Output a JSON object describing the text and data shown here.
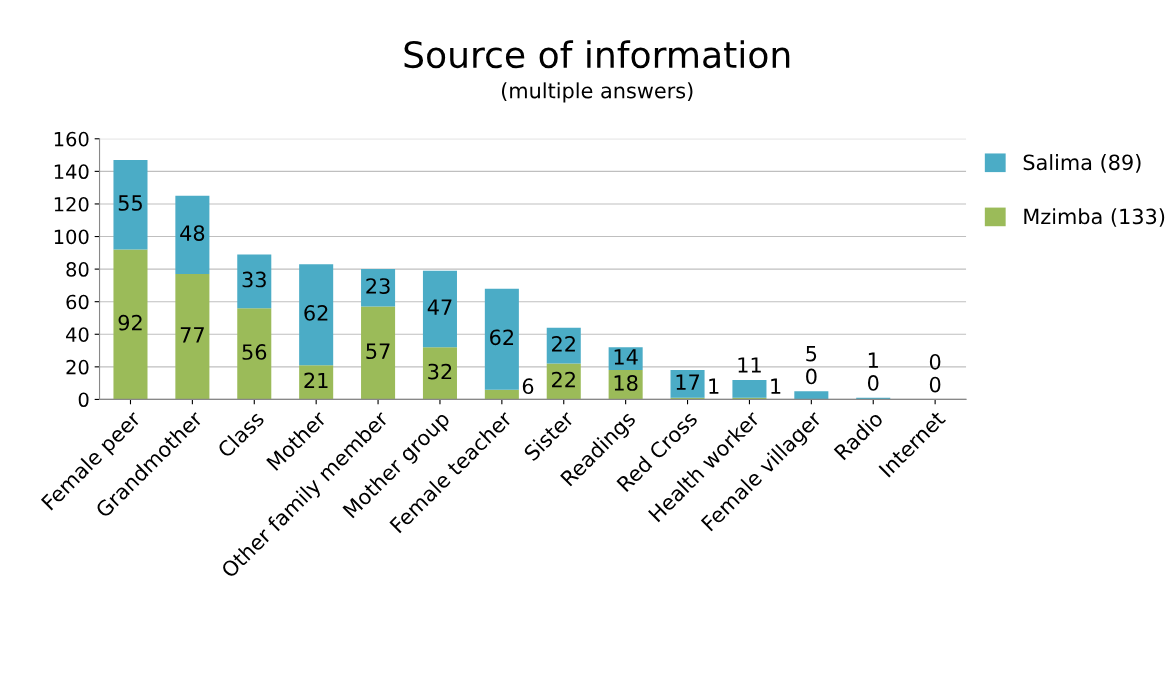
{
  "chart_data": {
    "type": "bar",
    "title": "Source of information",
    "subtitle": "(multiple answers)",
    "categories": [
      "Female peer",
      "Grandmother",
      "Class",
      "Mother",
      "Other family member",
      "Mother group",
      "Female teacher",
      "Sister",
      "Readings",
      "Red Cross",
      "Health worker",
      "Female villager",
      "Radio",
      "Internet"
    ],
    "series": [
      {
        "name": "Mzimba (133)",
        "color": "#9bbb59",
        "values": [
          92,
          77,
          56,
          21,
          57,
          32,
          6,
          22,
          18,
          1,
          1,
          0,
          0,
          0
        ]
      },
      {
        "name": "Salima (89)",
        "color": "#4bacc6",
        "values": [
          55,
          48,
          33,
          62,
          23,
          47,
          62,
          22,
          14,
          17,
          11,
          5,
          1,
          0
        ]
      }
    ],
    "stacked": true,
    "data_labels": true,
    "ylim": [
      0,
      160
    ],
    "yticks": [
      0,
      20,
      40,
      60,
      80,
      100,
      120,
      140,
      160
    ],
    "grid": "y",
    "legend": "right"
  }
}
